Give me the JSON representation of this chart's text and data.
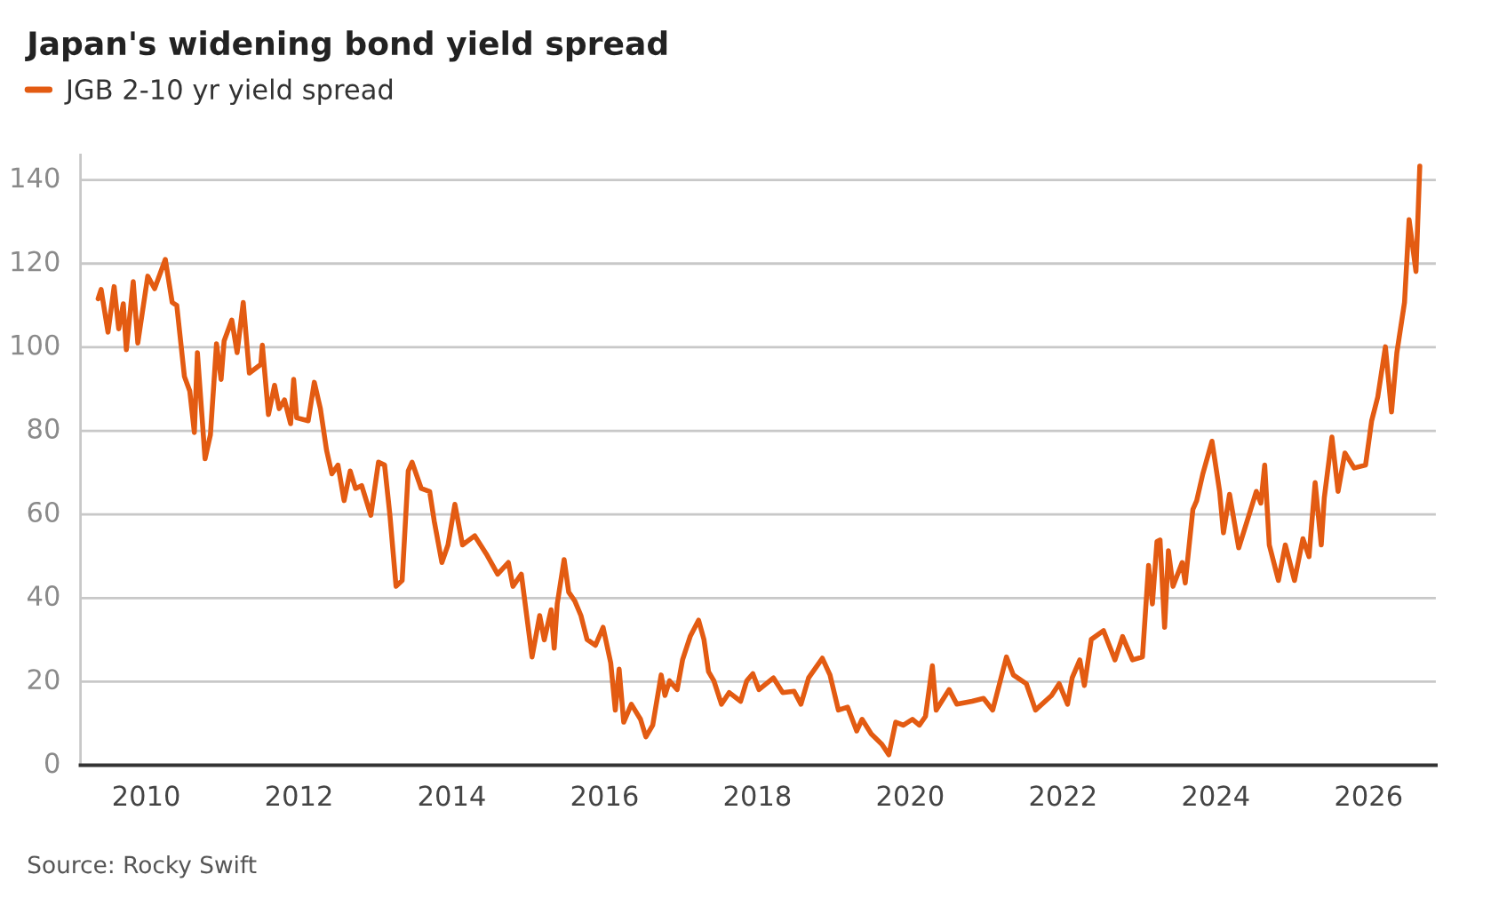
{
  "chart_data": {
    "type": "line",
    "title": "Japan's widening bond yield spread",
    "annotations": [
      "Source: Rocky Swift"
    ],
    "legend": "top left",
    "grid": "y",
    "marker": "none",
    "line_style": "solid",
    "xlim": [
      2009.14,
      2026.88
    ],
    "xticks": [
      2010,
      2012,
      2014,
      2016,
      2018,
      2020,
      2022,
      2024,
      2026
    ],
    "ylim": [
      0,
      146
    ],
    "yticks": [
      0,
      20,
      40,
      60,
      80,
      100,
      120,
      140
    ],
    "series": [
      {
        "name": "JGB 2-10 yr yield spread",
        "color": "#e35b12",
        "x": [
          2009.37,
          2009.41,
          2009.5,
          2009.58,
          2009.64,
          2009.7,
          2009.74,
          2009.83,
          2009.89,
          2010.02,
          2010.11,
          2010.25,
          2010.34,
          2010.4,
          2010.5,
          2010.57,
          2010.63,
          2010.67,
          2010.77,
          2010.84,
          2010.92,
          2010.98,
          2011.02,
          2011.12,
          2011.19,
          2011.27,
          2011.35,
          2011.5,
          2011.52,
          2011.6,
          2011.68,
          2011.74,
          2011.81,
          2011.89,
          2011.93,
          2011.97,
          2012.12,
          2012.2,
          2012.28,
          2012.36,
          2012.43,
          2012.51,
          2012.59,
          2012.67,
          2012.74,
          2012.82,
          2012.94,
          2013.04,
          2013.12,
          2013.19,
          2013.27,
          2013.35,
          2013.43,
          2013.48,
          2013.6,
          2013.71,
          2013.77,
          2013.87,
          2013.95,
          2014.04,
          2014.14,
          2014.3,
          2014.45,
          2014.6,
          2014.74,
          2014.8,
          2014.91,
          2015.05,
          2015.15,
          2015.21,
          2015.3,
          2015.34,
          2015.38,
          2015.47,
          2015.53,
          2015.61,
          2015.69,
          2015.77,
          2015.88,
          2015.98,
          2016.08,
          2016.14,
          2016.19,
          2016.25,
          2016.35,
          2016.47,
          2016.54,
          2016.63,
          2016.74,
          2016.79,
          2016.85,
          2016.95,
          2017.02,
          2017.12,
          2017.23,
          2017.3,
          2017.36,
          2017.43,
          2017.53,
          2017.63,
          2017.78,
          2017.86,
          2017.94,
          2018.02,
          2018.21,
          2018.33,
          2018.48,
          2018.57,
          2018.67,
          2018.85,
          2018.95,
          2019.06,
          2019.18,
          2019.3,
          2019.37,
          2019.49,
          2019.63,
          2019.72,
          2019.81,
          2019.91,
          2020.03,
          2020.12,
          2020.2,
          2020.29,
          2020.34,
          2020.51,
          2020.61,
          2020.81,
          2020.96,
          2021.08,
          2021.26,
          2021.35,
          2021.52,
          2021.64,
          2021.85,
          2021.95,
          2022.06,
          2022.12,
          2022.22,
          2022.28,
          2022.37,
          2022.53,
          2022.68,
          2022.78,
          2022.91,
          2023.04,
          2023.12,
          2023.17,
          2023.23,
          2023.27,
          2023.33,
          2023.38,
          2023.44,
          2023.56,
          2023.6,
          2023.7,
          2023.75,
          2023.83,
          2023.95,
          2024.05,
          2024.1,
          2024.18,
          2024.3,
          2024.41,
          2024.53,
          2024.59,
          2024.64,
          2024.7,
          2024.82,
          2024.91,
          2025.03,
          2025.14,
          2025.22,
          2025.3,
          2025.38,
          2025.42,
          2025.52,
          2025.6,
          2025.69,
          2025.81,
          2025.96,
          2026.04,
          2026.12,
          2026.22,
          2026.3,
          2026.37,
          2026.47,
          2026.53,
          2026.62,
          2026.67
        ],
        "values": [
          111.6,
          113.8,
          103.6,
          114.5,
          104.4,
          110.4,
          99.4,
          115.7,
          101,
          117,
          114,
          121,
          110.7,
          110,
          93,
          89.5,
          79.6,
          98.7,
          73.3,
          79,
          100.8,
          92.3,
          101.5,
          106.5,
          98.7,
          110.7,
          93.8,
          95.9,
          100.5,
          83.9,
          90.9,
          85.3,
          87.4,
          81.7,
          92.3,
          83.1,
          82.4,
          91.6,
          85.3,
          75.4,
          69.7,
          71.8,
          63.3,
          70.4,
          66.2,
          66.9,
          59.8,
          72.5,
          71.8,
          59.8,
          42.8,
          44.2,
          70.4,
          72.5,
          66.2,
          65.5,
          58.4,
          48.5,
          52.7,
          62.4,
          52.7,
          54.9,
          50.6,
          45.7,
          48.5,
          42.8,
          45.7,
          25.9,
          35.8,
          30,
          37.2,
          28,
          38.6,
          49.2,
          41.4,
          39.3,
          35.8,
          30.1,
          28.7,
          33,
          24.5,
          13.2,
          23,
          10.3,
          14.6,
          11,
          6.8,
          9.6,
          21.6,
          16.7,
          20.2,
          18.1,
          25.2,
          30.8,
          34.7,
          30.1,
          22.4,
          20.2,
          14.6,
          17.4,
          15.3,
          20.2,
          21.9,
          18.1,
          20.9,
          17.4,
          17.7,
          14.6,
          20.9,
          25.6,
          21.6,
          13.2,
          13.9,
          8.2,
          11,
          7.5,
          5,
          2.5,
          10.3,
          9.6,
          11,
          9.6,
          11.7,
          23.8,
          13.2,
          18.1,
          14.6,
          15.3,
          16,
          13.2,
          25.9,
          21.6,
          19.5,
          13.2,
          16.7,
          19.5,
          14.6,
          20.9,
          25.2,
          19.1,
          30.1,
          32.2,
          25.2,
          30.8,
          25.2,
          25.9,
          47.8,
          38.6,
          53.5,
          53.9,
          33,
          51.3,
          42.8,
          48.5,
          43.6,
          61.2,
          63.3,
          69.7,
          77.5,
          65.5,
          55.6,
          64.8,
          52,
          58.4,
          65.5,
          62.7,
          71.8,
          52.7,
          44.2,
          52.7,
          44.2,
          54.2,
          49.9,
          67.6,
          52.7,
          64,
          78.5,
          65.5,
          74.7,
          71.1,
          71.8,
          82.4,
          88.1,
          100.1,
          84.5,
          98.7,
          110.7,
          130.5,
          118.1,
          143.3
        ]
      }
    ]
  }
}
